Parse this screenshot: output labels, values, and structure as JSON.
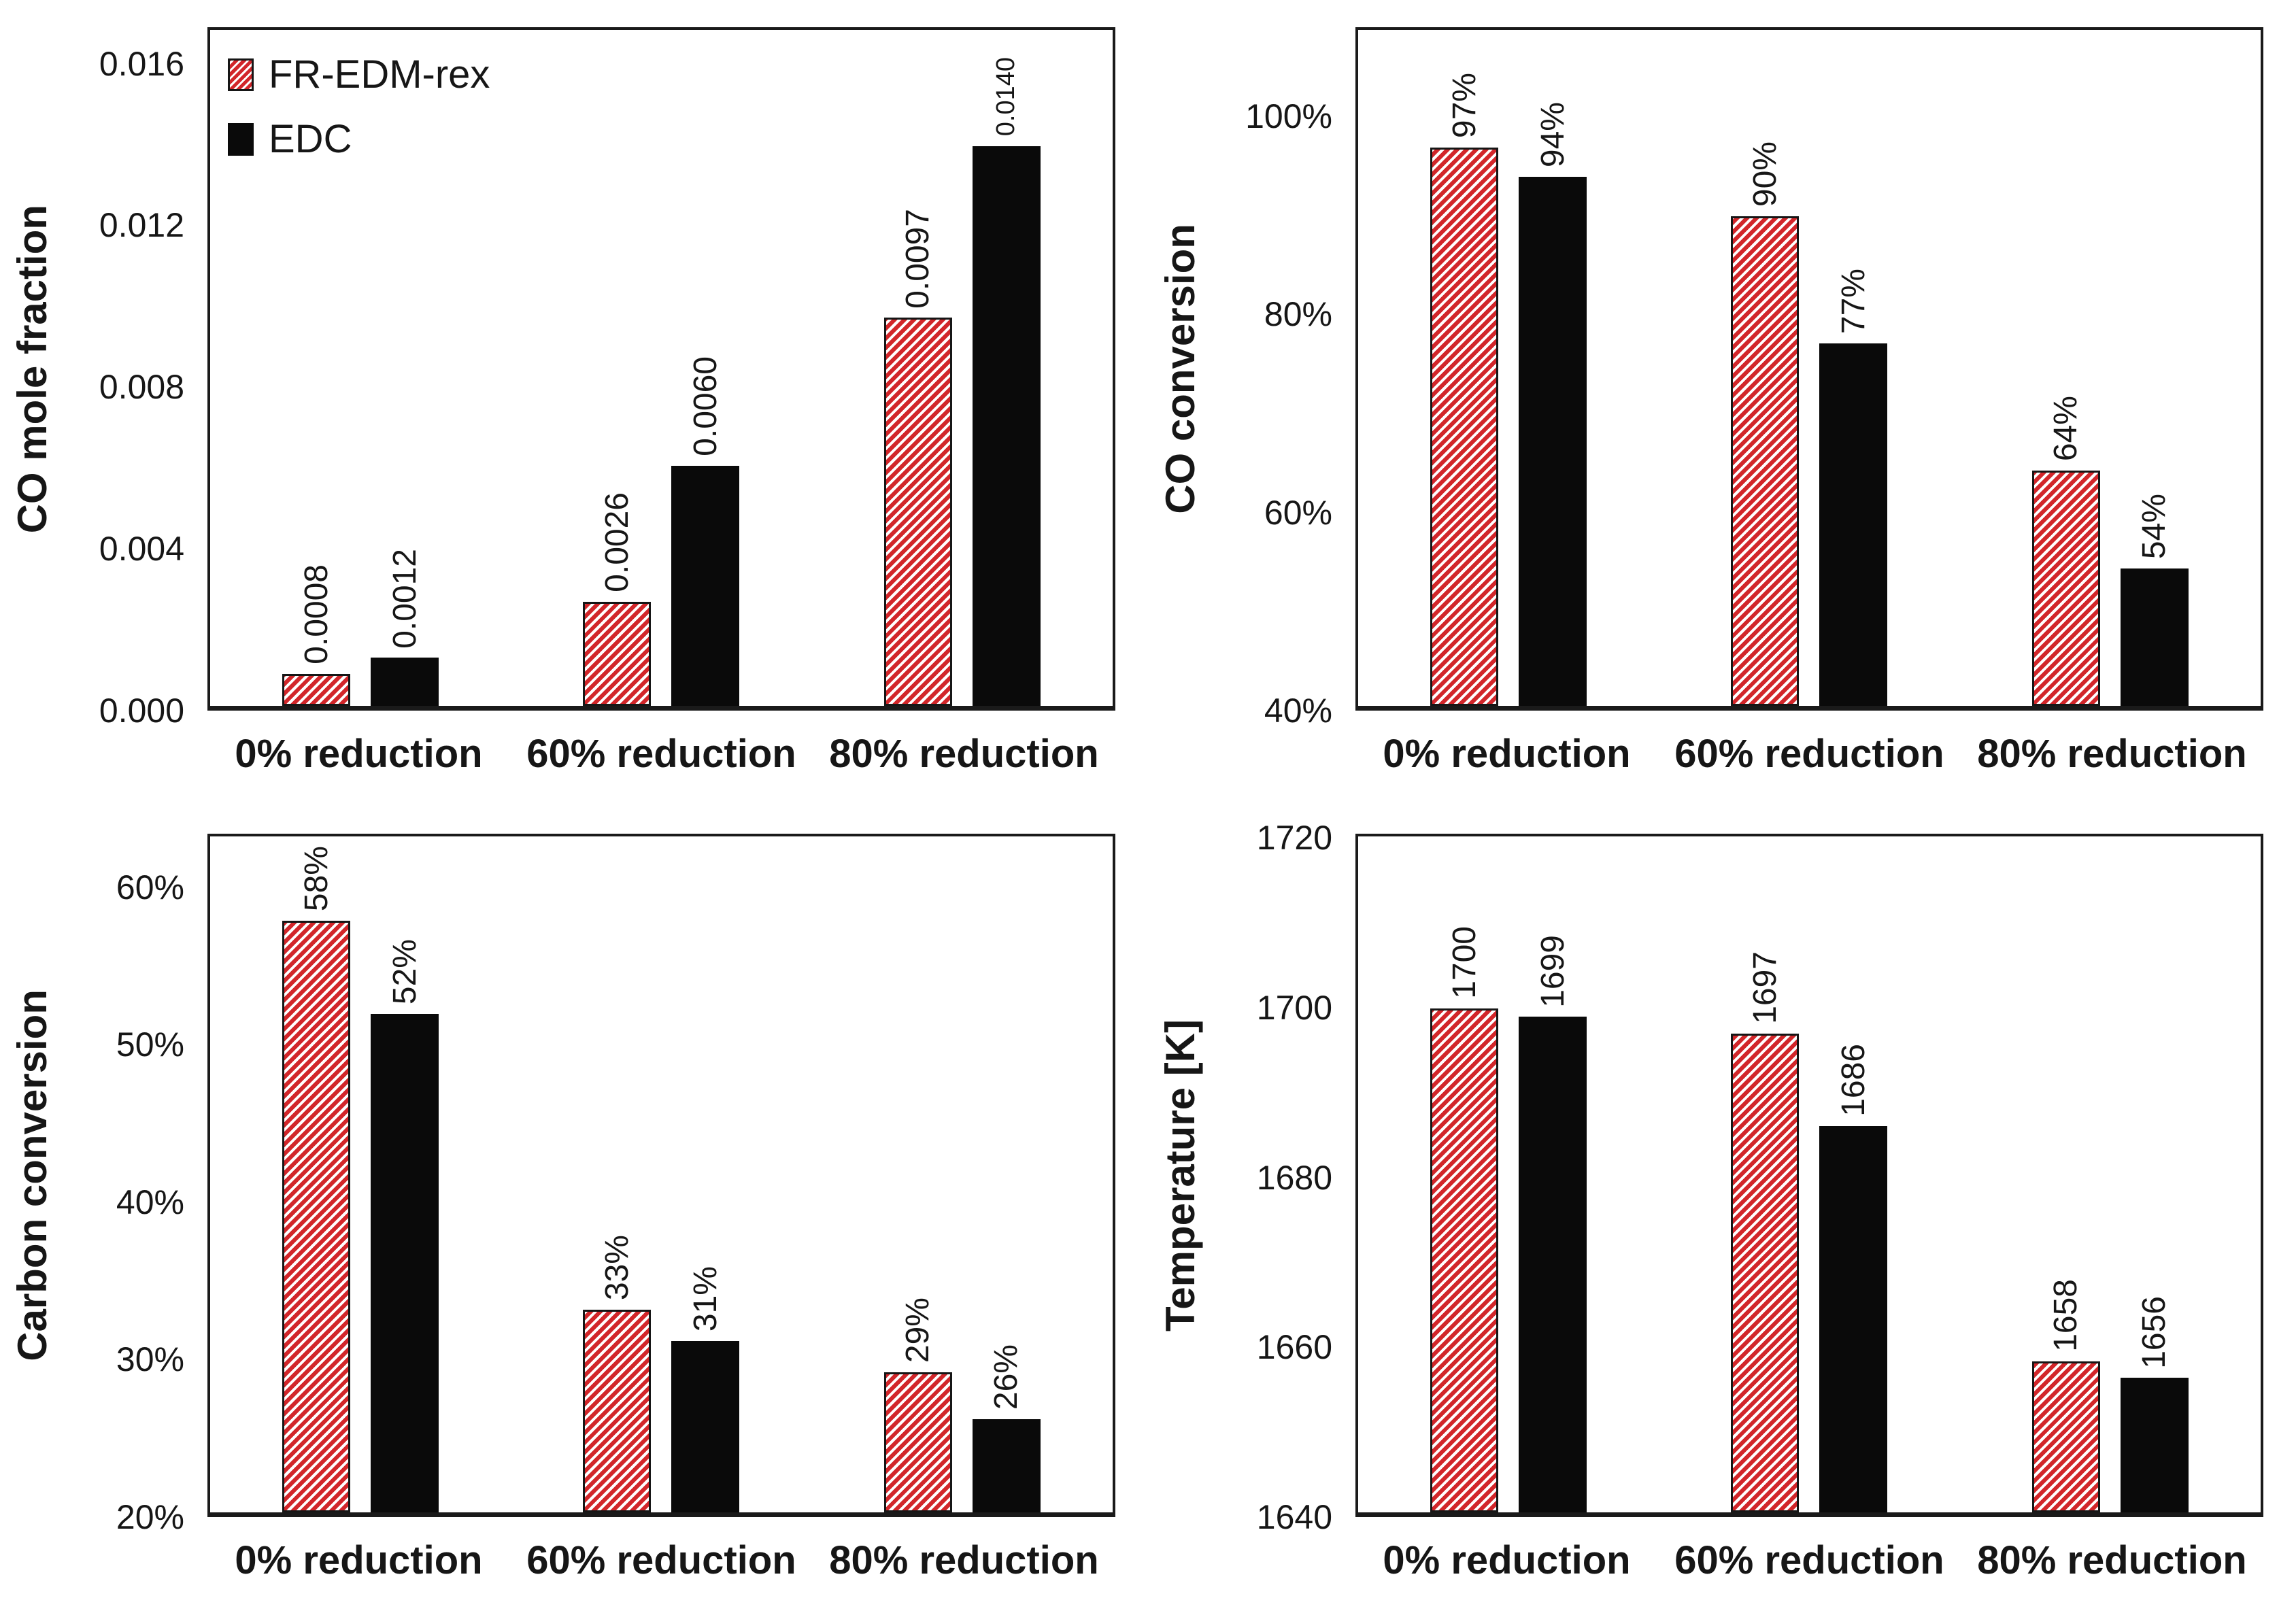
{
  "colors": {
    "red": "#d2262a",
    "black": "#0a0a0a",
    "axis": "#1a1a1a"
  },
  "legend": {
    "items": [
      {
        "label": "FR-EDM-rex",
        "swatch": "red-hatch"
      },
      {
        "label": "EDC",
        "swatch": "black-solid"
      }
    ]
  },
  "chart_data": [
    {
      "type": "bar",
      "ylabel": "CO mole fraction",
      "ylim": [
        0,
        0.0169
      ],
      "grid": false,
      "legend_position": "top-left-inside",
      "yticks": [
        {
          "v": 0.0,
          "label": "0.000"
        },
        {
          "v": 0.004,
          "label": "0.004"
        },
        {
          "v": 0.008,
          "label": "0.008"
        },
        {
          "v": 0.012,
          "label": "0.012"
        },
        {
          "v": 0.016,
          "label": "0.016"
        }
      ],
      "categories": [
        "0% reduction",
        "60% reduction",
        "80% reduction"
      ],
      "series": [
        {
          "name": "FR-EDM-rex",
          "values": [
            0.0008,
            0.0026,
            0.0097
          ],
          "labels": [
            "0.0008",
            "0.0026",
            "0.0097"
          ]
        },
        {
          "name": "EDC",
          "values": [
            0.0012,
            0.006,
            0.014
          ],
          "labels": [
            "0.0012",
            "0.0060",
            "0.0140"
          ],
          "small_label_indices": [
            2
          ]
        }
      ]
    },
    {
      "type": "bar",
      "ylabel": "CO conversion",
      "ylim": [
        40,
        109
      ],
      "grid": false,
      "yticks": [
        {
          "v": 40,
          "label": "40%"
        },
        {
          "v": 60,
          "label": "60%"
        },
        {
          "v": 80,
          "label": "80%"
        },
        {
          "v": 100,
          "label": "100%"
        }
      ],
      "categories": [
        "0% reduction",
        "60% reduction",
        "80% reduction"
      ],
      "series": [
        {
          "name": "FR-EDM-rex",
          "values": [
            97,
            90,
            64
          ],
          "labels": [
            "97%",
            "90%",
            "64%"
          ]
        },
        {
          "name": "EDC",
          "values": [
            94,
            77,
            54
          ],
          "labels": [
            "94%",
            "77%",
            "54%"
          ]
        }
      ]
    },
    {
      "type": "bar",
      "ylabel": "Carbon conversion",
      "ylim": [
        20,
        63.4
      ],
      "grid": false,
      "yticks": [
        {
          "v": 20,
          "label": "20%"
        },
        {
          "v": 30,
          "label": "30%"
        },
        {
          "v": 40,
          "label": "40%"
        },
        {
          "v": 50,
          "label": "50%"
        },
        {
          "v": 60,
          "label": "60%"
        }
      ],
      "categories": [
        "0% reduction",
        "60% reduction",
        "80% reduction"
      ],
      "series": [
        {
          "name": "FR-EDM-rex",
          "values": [
            58,
            33,
            29
          ],
          "labels": [
            "58%",
            "33%",
            "29%"
          ]
        },
        {
          "name": "EDC",
          "values": [
            52,
            31,
            26
          ],
          "labels": [
            "52%",
            "31%",
            "26%"
          ]
        }
      ]
    },
    {
      "type": "bar",
      "ylabel": "Temperature  [K]",
      "ylim": [
        1640,
        1720.5
      ],
      "grid": false,
      "yticks": [
        {
          "v": 1640,
          "label": "1640"
        },
        {
          "v": 1660,
          "label": "1660"
        },
        {
          "v": 1680,
          "label": "1680"
        },
        {
          "v": 1700,
          "label": "1700"
        },
        {
          "v": 1720,
          "label": "1720"
        }
      ],
      "categories": [
        "0% reduction",
        "60% reduction",
        "80% reduction"
      ],
      "series": [
        {
          "name": "FR-EDM-rex",
          "values": [
            1700,
            1697,
            1658
          ],
          "labels": [
            "1700",
            "1697",
            "1658"
          ]
        },
        {
          "name": "EDC",
          "values": [
            1699,
            1686,
            1656
          ],
          "labels": [
            "1699",
            "1686",
            "1656"
          ]
        }
      ]
    }
  ]
}
